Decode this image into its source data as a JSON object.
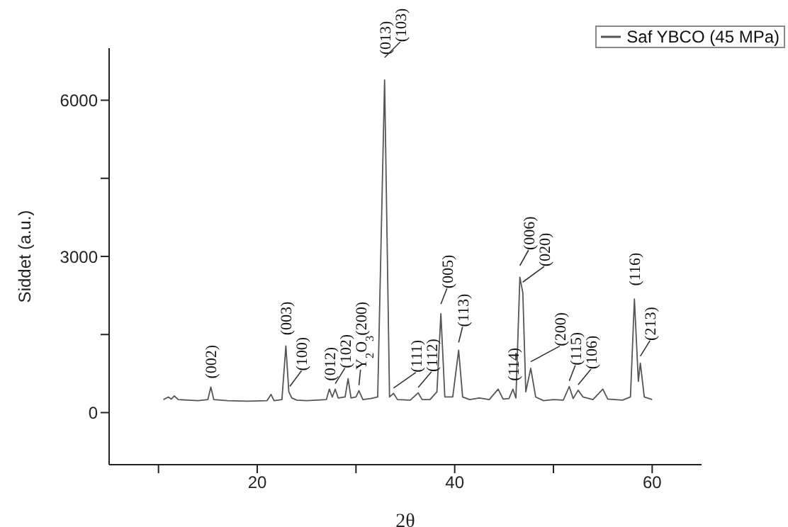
{
  "chart_data": {
    "type": "line",
    "xlabel": "2θ",
    "ylabel": "Siddet (a.u.)",
    "legend": "top right",
    "grid": false,
    "marker": "none",
    "line_style": "solid",
    "xlim": [
      5,
      65
    ],
    "xticks": [
      {
        "value": 10,
        "label": null
      },
      20,
      {
        "value": 30,
        "label": null
      },
      40,
      {
        "value": 50,
        "label": null
      },
      60
    ],
    "ylim": [
      -1000,
      7000
    ],
    "yticks": [
      0,
      {
        "value": 1500,
        "label": null
      },
      3000,
      {
        "value": 4500,
        "label": null
      },
      6000
    ],
    "series": [
      {
        "name": "Saf YBCO (45 MPa)",
        "color": "#555555",
        "x": [
          10.5,
          11.0,
          11.3,
          11.6,
          12.0,
          13,
          14,
          15.0,
          15.3,
          15.6,
          17,
          19,
          21,
          21.4,
          21.7,
          22.5,
          22.9,
          23.2,
          23.5,
          24,
          25,
          26,
          27,
          27.3,
          27.6,
          27.9,
          28.2,
          28.9,
          29.2,
          29.5,
          30.0,
          30.3,
          30.7,
          31.5,
          32.2,
          32.9,
          33.4,
          33.8,
          34.2,
          35.5,
          36.3,
          36.7,
          37.5,
          38.2,
          38.6,
          39.0,
          39.8,
          40.4,
          40.8,
          41.5,
          42.5,
          43.5,
          44.4,
          44.9,
          45.5,
          45.9,
          46.2,
          46.6,
          46.9,
          47.2,
          47.7,
          48.2,
          49,
          50,
          51,
          51.6,
          52.0,
          52.5,
          53,
          54,
          55,
          55.5,
          57,
          57.8,
          58.2,
          58.6,
          58.8,
          59.2,
          60
        ],
        "values": [
          250,
          300,
          260,
          320,
          250,
          240,
          230,
          250,
          490,
          250,
          230,
          220,
          230,
          350,
          230,
          250,
          1280,
          400,
          280,
          240,
          230,
          240,
          250,
          450,
          300,
          450,
          280,
          300,
          650,
          280,
          300,
          420,
          250,
          270,
          300,
          6390,
          300,
          370,
          250,
          240,
          380,
          250,
          250,
          400,
          1900,
          300,
          300,
          1200,
          300,
          250,
          280,
          250,
          450,
          260,
          270,
          450,
          280,
          2600,
          2300,
          400,
          850,
          300,
          230,
          250,
          240,
          500,
          270,
          430,
          300,
          250,
          450,
          260,
          240,
          300,
          2180,
          600,
          950,
          300,
          250
        ]
      }
    ],
    "annotations": [
      {
        "text": "(002)",
        "x": 15.3,
        "y": 490
      },
      {
        "text": "(003)",
        "x": 22.9,
        "y": 1280
      },
      {
        "text": "(100)",
        "x": 23.3,
        "y": 400
      },
      {
        "text": "(012)",
        "x": 27.3,
        "y": 450
      },
      {
        "text": "(102)",
        "x": 27.9,
        "y": 450
      },
      {
        "text": "Y$_{2}$O$_{3}$(200)",
        "x": 30.3,
        "y": 420
      },
      {
        "text": "(013)",
        "x": 32.9,
        "y": 6390
      },
      {
        "text": "(103)",
        "x": 32.9,
        "y": 6390
      },
      {
        "text": "(111)",
        "x": 33.8,
        "y": 370
      },
      {
        "text": "(112)",
        "x": 36.3,
        "y": 380
      },
      {
        "text": "(005)",
        "x": 38.6,
        "y": 1900
      },
      {
        "text": "(113)",
        "x": 40.4,
        "y": 1200
      },
      {
        "text": "(114)",
        "x": 45.9,
        "y": 450
      },
      {
        "text": "(006)",
        "x": 46.6,
        "y": 2600
      },
      {
        "text": "(020)",
        "x": 46.9,
        "y": 2300
      },
      {
        "text": "(200)",
        "x": 47.7,
        "y": 850
      },
      {
        "text": "(115)",
        "x": 51.6,
        "y": 500
      },
      {
        "text": "(106)",
        "x": 52.5,
        "y": 430
      },
      {
        "text": "(116)",
        "x": 58.2,
        "y": 2180
      },
      {
        "text": "(213)",
        "x": 58.8,
        "y": 950
      }
    ]
  }
}
